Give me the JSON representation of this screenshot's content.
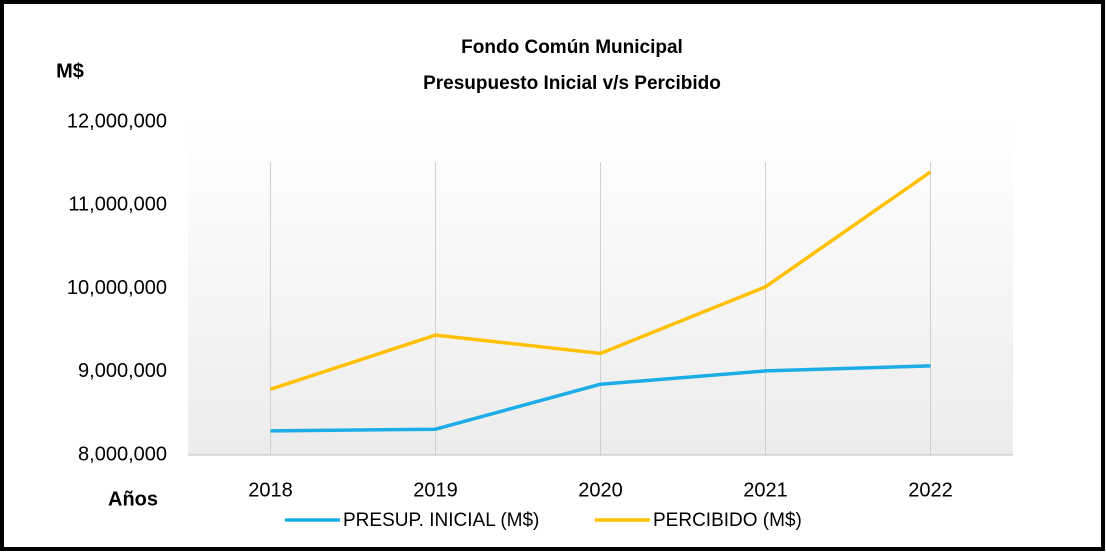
{
  "chart_data": {
    "type": "line",
    "title": "Fondo Común Municipal",
    "subtitle": "Presupuesto Inicial v/s Percibido",
    "y_label": "M$",
    "x_label": "Años",
    "categories": [
      "2018",
      "2019",
      "2020",
      "2021",
      "2022"
    ],
    "series": [
      {
        "name": "PRESUP. INICIAL (M$)",
        "color": "#1cace6",
        "values": [
          8290000,
          8310000,
          8850000,
          9010000,
          9070000
        ]
      },
      {
        "name": "PERCIBIDO (M$)",
        "color": "#ffc000",
        "values": [
          8790000,
          9440000,
          9220000,
          10020000,
          11400000
        ]
      }
    ],
    "ylim": [
      8000000,
      12000000
    ],
    "yticks": [
      {
        "value": 8000000,
        "label": "8,000,000"
      },
      {
        "value": 9000000,
        "label": "9,000,000"
      },
      {
        "value": 10000000,
        "label": "10,000,000"
      },
      {
        "value": 11000000,
        "label": "11,000,000"
      },
      {
        "value": 12000000,
        "label": "12,000,000"
      }
    ],
    "grid": "vertical",
    "legend": "bottom"
  }
}
